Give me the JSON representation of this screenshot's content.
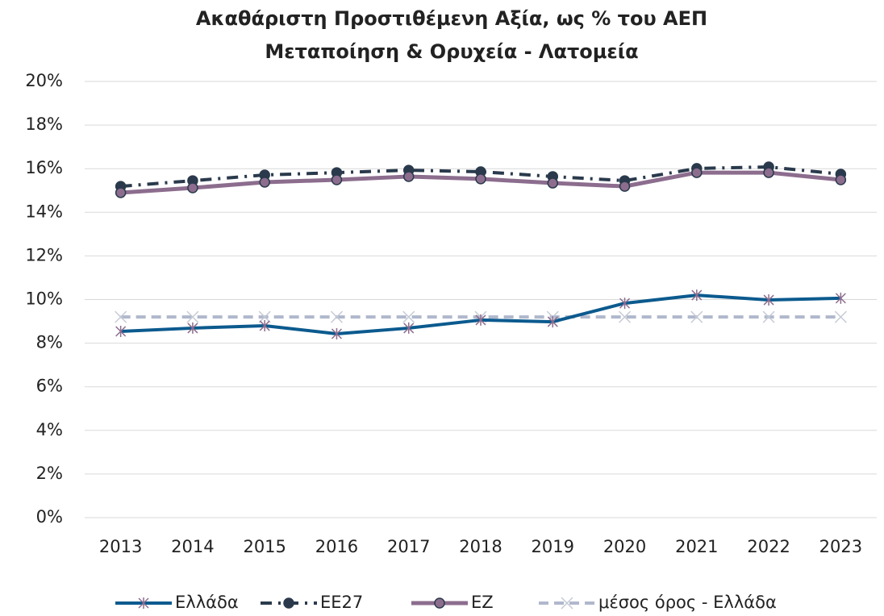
{
  "chart_data": {
    "type": "line",
    "title": "Ακαθάριστη Προστιθέμενη Αξία, ως % του ΑΕΠ",
    "subtitle": "Μεταποίηση & Ορυχεία - Λατομεία",
    "categories": [
      "2013",
      "2014",
      "2015",
      "2016",
      "2017",
      "2018",
      "2019",
      "2020",
      "2021",
      "2022",
      "2023"
    ],
    "series": [
      {
        "name": "Ελλάδα",
        "color": "#0b5a8e",
        "values": [
          8.54,
          8.69,
          8.8,
          8.43,
          8.69,
          9.06,
          8.98,
          9.83,
          10.2,
          9.98,
          10.06
        ]
      },
      {
        "name": "ΕΕ27",
        "color": "#2a3a4c",
        "values": [
          15.19,
          15.45,
          15.71,
          15.82,
          15.93,
          15.86,
          15.64,
          15.45,
          16.01,
          16.08,
          15.75
        ]
      },
      {
        "name": "ΕΖ",
        "color": "#8c6d8e",
        "values": [
          14.9,
          15.12,
          15.38,
          15.49,
          15.64,
          15.53,
          15.34,
          15.19,
          15.82,
          15.82,
          15.49
        ]
      },
      {
        "name": "μέσος όρος - Ελλάδα",
        "color": "#b0b8cc",
        "values": [
          9.2,
          9.2,
          9.2,
          9.2,
          9.2,
          9.2,
          9.2,
          9.2,
          9.2,
          9.2,
          9.2
        ]
      }
    ],
    "ylim": [
      0,
      20
    ],
    "yticks": [
      {
        "value": 0,
        "label": "0%"
      },
      {
        "value": 2,
        "label": "2%"
      },
      {
        "value": 4,
        "label": "4%"
      },
      {
        "value": 6,
        "label": "6%"
      },
      {
        "value": 8,
        "label": "8%"
      },
      {
        "value": 10,
        "label": "10%"
      },
      {
        "value": 12,
        "label": "12%"
      },
      {
        "value": 14,
        "label": "14%"
      },
      {
        "value": 16,
        "label": "16%"
      },
      {
        "value": 18,
        "label": "18%"
      },
      {
        "value": 20,
        "label": "20%"
      }
    ],
    "grid": true,
    "legend": "bottom"
  }
}
